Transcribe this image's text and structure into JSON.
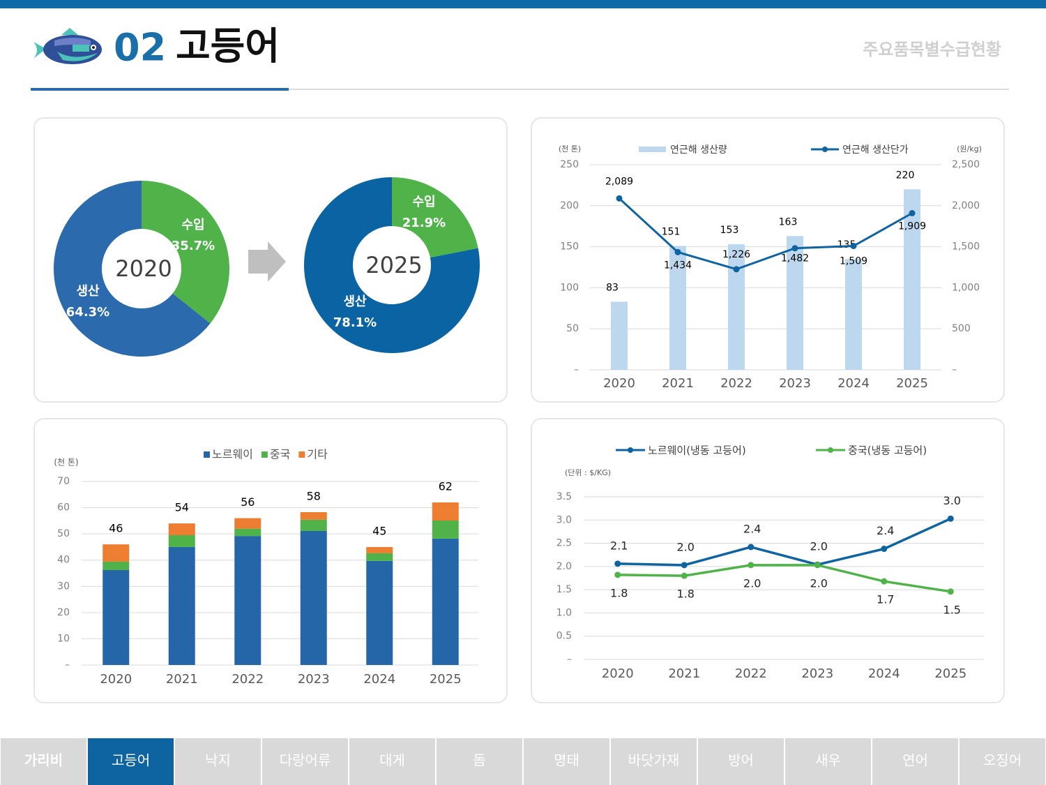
{
  "header": {
    "number": "02",
    "title": "고등어",
    "subtitle": "주요품목별수급현황"
  },
  "nav": {
    "tabs": [
      "가리비",
      "고등어",
      "낙지",
      "다랑어류",
      "대게",
      "돔",
      "명태",
      "바닷가재",
      "방어",
      "새우",
      "연어",
      "오징어"
    ],
    "active": 1
  },
  "chart_data": [
    {
      "type": "pie",
      "center_label": "2020",
      "categories": [
        "수입",
        "생산"
      ],
      "values": [
        35.7,
        64.3
      ],
      "value_labels": [
        "35.7%",
        "64.3%"
      ],
      "colors": [
        "#4fb349",
        "#2a6aad"
      ]
    },
    {
      "type": "pie",
      "center_label": "2025",
      "categories": [
        "수입",
        "생산"
      ],
      "values": [
        21.9,
        78.1
      ],
      "value_labels": [
        "21.9%",
        "78.1%"
      ],
      "colors": [
        "#4fb349",
        "#0a64a4"
      ]
    },
    {
      "type": "bar_line",
      "categories": [
        "2020",
        "2021",
        "2022",
        "2023",
        "2024",
        "2025"
      ],
      "y_label": "(천 톤)",
      "y2_label": "(원/kg)",
      "series": [
        {
          "name": "연근해 생산량",
          "type": "bar",
          "color": "#bdd7ee",
          "axis": "y",
          "values": [
            83,
            151,
            153,
            163,
            135,
            220
          ]
        },
        {
          "name": "연근해 생산단가",
          "type": "line",
          "color": "#0e64a0",
          "axis": "y2",
          "values": [
            2089,
            1434,
            1226,
            1482,
            1509,
            1909
          ],
          "value_labels": [
            "2,089",
            "1,434",
            "1,226",
            "1,482",
            "1,509",
            "1,909"
          ]
        }
      ],
      "ylim": [
        0,
        250
      ],
      "yticks": [
        {
          "value": 0,
          "label": "–"
        },
        50,
        100,
        150,
        200,
        250
      ],
      "y2lim": [
        0,
        2500
      ],
      "y2ticks": [
        {
          "value": 0,
          "label": "–"
        },
        500,
        {
          "value": 1000,
          "label": "1,000"
        },
        {
          "value": 1500,
          "label": "1,500"
        },
        {
          "value": 2000,
          "label": "2,000"
        },
        {
          "value": 2500,
          "label": "2,500"
        }
      ],
      "grid": true
    },
    {
      "type": "stacked_bar",
      "categories": [
        "2020",
        "2021",
        "2022",
        "2023",
        "2024",
        "2025"
      ],
      "y_label": "(천 톤)",
      "series": [
        {
          "name": "노르웨이",
          "color": "#2566a8",
          "values": [
            36.2,
            45,
            49.2,
            51.1,
            39.7,
            48.2
          ]
        },
        {
          "name": "중국",
          "color": "#4fb349",
          "values": [
            3.2,
            4.5,
            2.8,
            4.3,
            2.9,
            6.9
          ]
        },
        {
          "name": "기타",
          "color": "#ed7d31",
          "values": [
            6.6,
            4.5,
            4,
            2.9,
            2.4,
            6.9
          ]
        }
      ],
      "totals": [
        46,
        54,
        56,
        58,
        45,
        62
      ],
      "ylim": [
        0,
        70
      ],
      "yticks": [
        {
          "value": 0,
          "label": "–"
        },
        10,
        20,
        30,
        40,
        50,
        60,
        70
      ],
      "grid": true
    },
    {
      "type": "line",
      "categories": [
        "2020",
        "2021",
        "2022",
        "2023",
        "2024",
        "2025"
      ],
      "y_label": "(단위 : $/KG)",
      "series": [
        {
          "name": "노르웨이(냉동 고등어)",
          "color": "#0e64a0",
          "values": [
            2.06,
            2.03,
            2.42,
            2.04,
            2.38,
            3.03
          ],
          "value_labels": [
            "2.1",
            "2.0",
            "2.4",
            "2.0",
            "2.4",
            "3.0"
          ]
        },
        {
          "name": "중국(냉동 고등어)",
          "color": "#4fb349",
          "values": [
            1.82,
            1.8,
            2.03,
            2.03,
            1.68,
            1.46
          ],
          "value_labels": [
            "1.8",
            "1.8",
            "2.0",
            "2.0",
            "1.7",
            "1.5"
          ]
        }
      ],
      "ylim": [
        0,
        3.5
      ],
      "yticks": [
        {
          "value": 0,
          "label": "–"
        },
        0.5,
        {
          "value": 1,
          "label": "1.0"
        },
        1.5,
        {
          "value": 2,
          "label": "2.0"
        },
        2.5,
        {
          "value": 3,
          "label": "3.0"
        },
        3.5
      ],
      "grid": true
    }
  ]
}
